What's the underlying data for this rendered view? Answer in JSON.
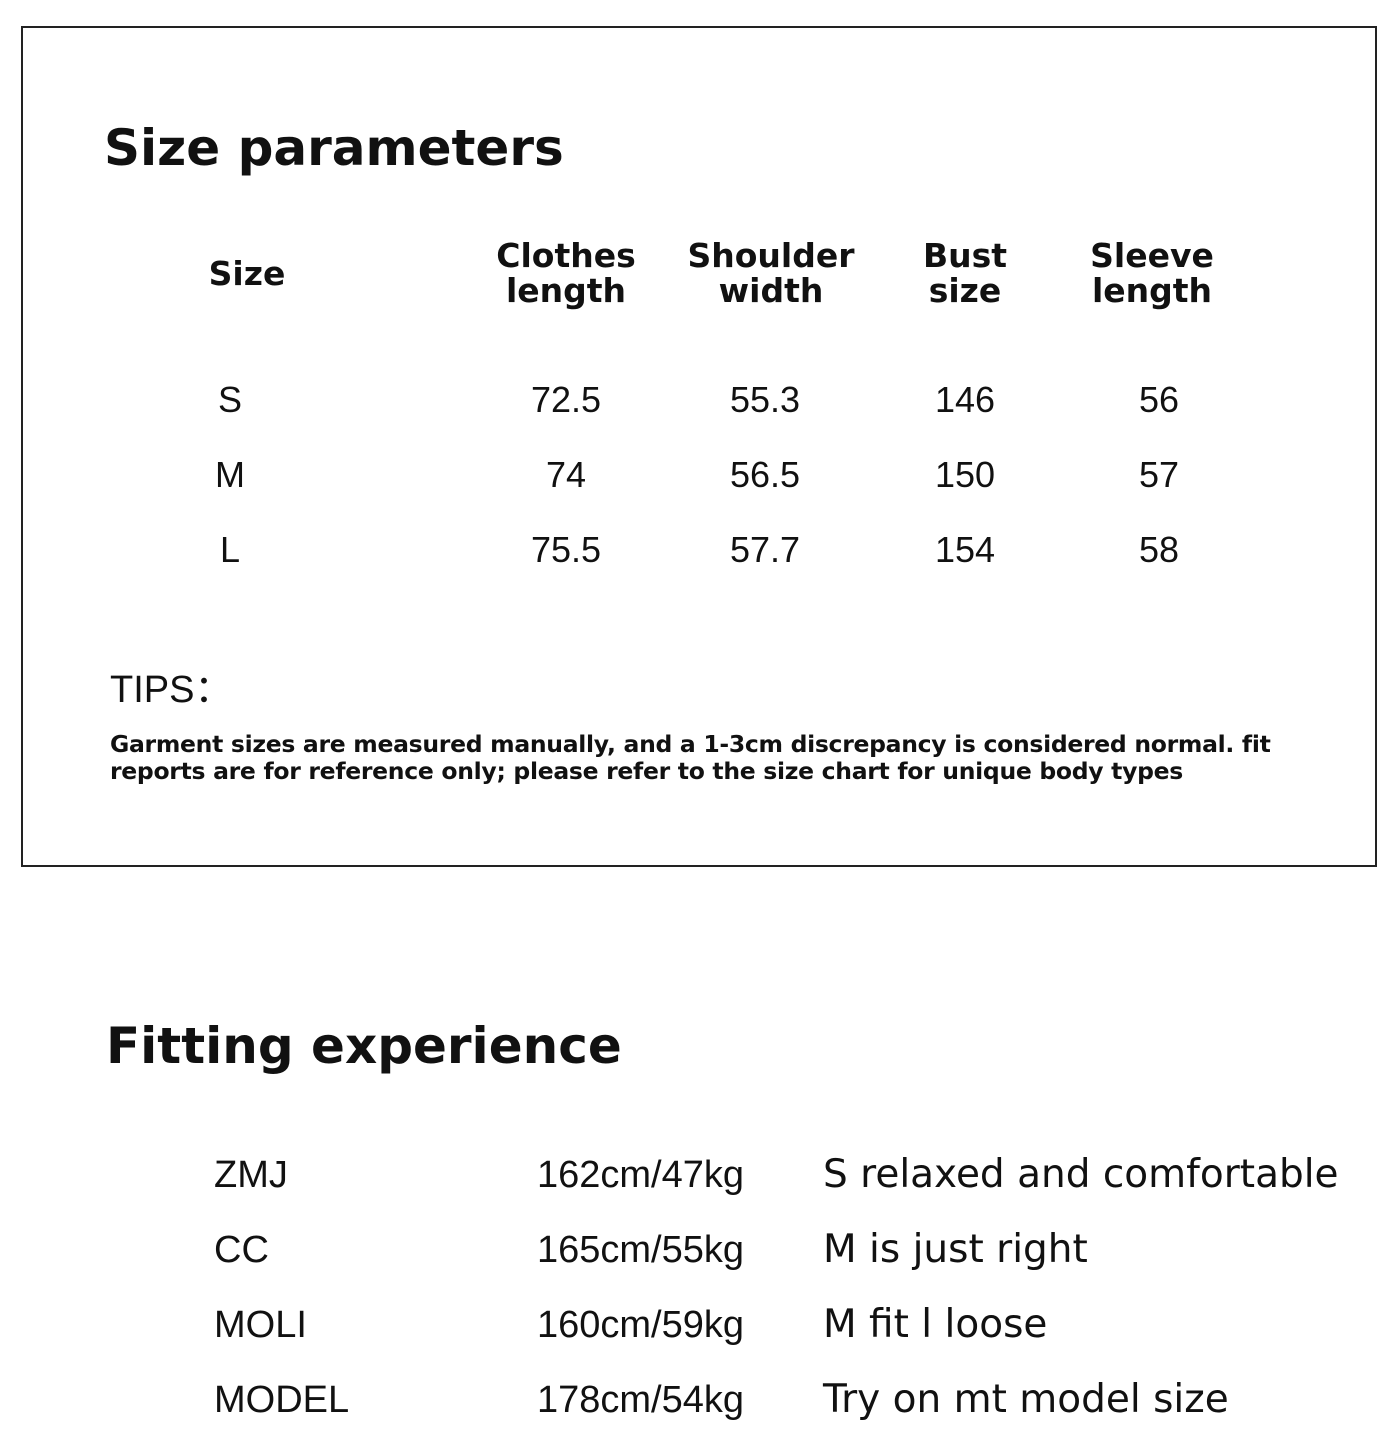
{
  "size_section": {
    "title": "Size parameters",
    "table": {
      "headers": [
        "Size",
        "Clothes length",
        "Shoulder width",
        "Bust size",
        "Sleeve length"
      ],
      "rows": [
        [
          "S",
          "72.5",
          "55.3",
          "146",
          "56"
        ],
        [
          "M",
          "74",
          "56.5",
          "150",
          "57"
        ],
        [
          "L",
          "75.5",
          "57.7",
          "154",
          "58"
        ]
      ]
    },
    "tips": {
      "title": "TIPS：",
      "text": "Garment sizes are measured manually, and a 1-3cm discrepancy is considered normal. fit reports are for reference only; please refer to the size chart for unique body types"
    }
  },
  "fitting_section": {
    "title": "Fitting experience",
    "rows": [
      [
        "ZMJ",
        "162cm/47kg",
        "S relaxed and comfortable"
      ],
      [
        "CC",
        "165cm/55kg",
        "M is just right"
      ],
      [
        "MOLI",
        "160cm/59kg",
        "M fit l loose"
      ],
      [
        "MODEL",
        "178cm/54kg",
        "Try on mt model size"
      ]
    ]
  }
}
